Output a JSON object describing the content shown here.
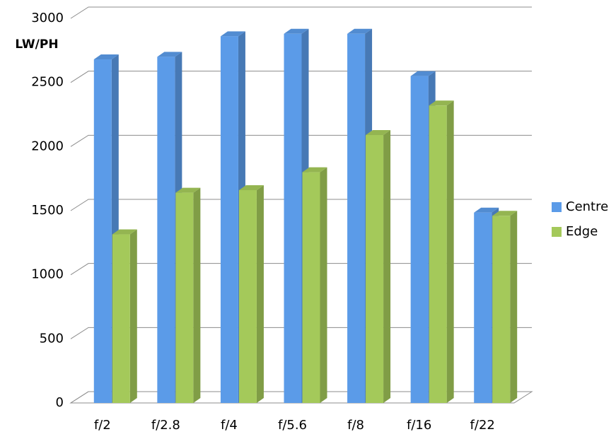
{
  "chart_data": {
    "type": "bar3d",
    "y_label": "LW/PH",
    "categories": [
      "f/2",
      "f/2.8",
      "f/4",
      "f/5.6",
      "f/8",
      "f/16",
      "f/22"
    ],
    "series": [
      {
        "name": "Centre",
        "color": "#5b9be8",
        "values": [
          2680,
          2700,
          2860,
          2880,
          2880,
          2550,
          1485
        ]
      },
      {
        "name": "Edge",
        "color": "#a4c95a",
        "values": [
          1315,
          1640,
          1660,
          1800,
          2090,
          2320,
          1460
        ]
      }
    ],
    "ylim": [
      0,
      3000
    ],
    "yticks": [
      0,
      500,
      1000,
      1500,
      2000,
      2500,
      3000
    ],
    "grid": true,
    "legend": "right"
  }
}
